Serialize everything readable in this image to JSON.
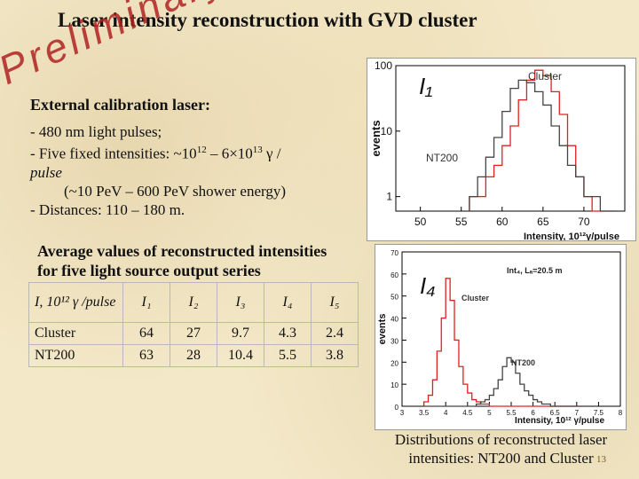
{
  "title": "Laser intensity reconstruction with GVD cluster",
  "watermark": "Preliminary",
  "calibration": {
    "heading": "External calibration laser:",
    "line1": "- 480 nm light pulses;",
    "line2_a": "- Five fixed intensities: ~10",
    "line2_sup1": "12",
    "line2_b": " – 6×10",
    "line2_sup2": "13",
    "line2_c": " γ  /",
    "line3": "pulse",
    "line4": "(~10 PeV – 600 PeV shower energy)",
    "line5": "- Distances: 110 – 180 m."
  },
  "average": {
    "heading_line1": "Average values of reconstructed intensities",
    "heading_line2": "for five light source output series"
  },
  "table": {
    "header": [
      "I, 10¹² γ /pulse",
      "I₁",
      "I₂",
      "I₃",
      "I₄",
      "I₅"
    ],
    "rows": [
      [
        "Cluster",
        "64",
        "27",
        "9.7",
        "4.3",
        "2.4"
      ],
      [
        "NT200",
        "63",
        "28",
        "10.4",
        "5.5",
        "3.8"
      ]
    ]
  },
  "caption": "Distributions of reconstructed laser intensities: NT200 and Cluster",
  "slide_number": "13",
  "chart_data": [
    {
      "type": "bar",
      "panel_label": "I₁",
      "ylabel": "events",
      "xlabel": "Intensity, 10¹²γ/pulse",
      "y_scale": "log",
      "ylim": [
        0.6,
        100
      ],
      "xlim": [
        47,
        75
      ],
      "x_ticks": [
        "50",
        "55",
        "60",
        "65",
        "70"
      ],
      "y_ticks": [
        "1",
        "10",
        "100"
      ],
      "legend": [
        "Cluster",
        "NT200"
      ],
      "colors": {
        "Cluster": "#e02020",
        "NT200": "#444444"
      },
      "bin_edges": [
        56,
        57,
        58,
        59,
        60,
        61,
        62,
        63,
        64,
        65,
        66,
        67,
        68,
        69,
        70,
        71,
        72,
        73,
        74
      ],
      "series": [
        {
          "name": "Cluster",
          "values": [
            1,
            1,
            2,
            3,
            6,
            12,
            30,
            60,
            85,
            70,
            40,
            18,
            6,
            2,
            1,
            0,
            0,
            0
          ]
        },
        {
          "name": "NT200",
          "values": [
            1,
            2,
            4,
            8,
            20,
            45,
            60,
            55,
            40,
            25,
            12,
            6,
            3,
            2,
            1,
            1,
            0,
            0
          ]
        }
      ]
    },
    {
      "type": "bar",
      "panel_label": "I₄",
      "ylabel": "events",
      "xlabel": "Intensity, 10¹² γ/pulse",
      "annotation": "Int₄, Lₐ=20.5 m",
      "ylim": [
        0,
        70
      ],
      "xlim": [
        3,
        8
      ],
      "x_ticks": [
        "3",
        "3.5",
        "4",
        "4.5",
        "5",
        "5.5",
        "6",
        "6.5",
        "7",
        "7.5",
        "8"
      ],
      "y_ticks": [
        "0",
        "10",
        "20",
        "30",
        "40",
        "50",
        "60",
        "70"
      ],
      "legend": [
        "Cluster",
        "NT200"
      ],
      "colors": {
        "Cluster": "#e02020",
        "NT200": "#444444"
      },
      "bin_edges": [
        3.5,
        3.6,
        3.7,
        3.8,
        3.9,
        4.0,
        4.1,
        4.2,
        4.3,
        4.4,
        4.5,
        4.6,
        4.7,
        4.8,
        4.9,
        5.0,
        5.1,
        5.2,
        5.3,
        5.4,
        5.5,
        5.6,
        5.7,
        5.8,
        5.9,
        6.0,
        6.1,
        6.2,
        6.3,
        6.4,
        6.5,
        6.6,
        6.7,
        6.8,
        6.9,
        7.0
      ],
      "series": [
        {
          "name": "Cluster",
          "values": [
            2,
            5,
            12,
            25,
            40,
            58,
            48,
            30,
            18,
            10,
            6,
            3,
            2,
            1,
            1,
            0,
            0,
            0,
            0,
            0,
            0,
            0,
            0,
            0,
            0,
            0,
            0,
            0,
            0,
            0,
            0,
            0,
            0,
            0,
            0
          ]
        },
        {
          "name": "NT200",
          "values": [
            0,
            0,
            0,
            0,
            0,
            0,
            0,
            0,
            0,
            0,
            0,
            0,
            1,
            2,
            3,
            5,
            8,
            12,
            18,
            22,
            20,
            15,
            10,
            7,
            5,
            3,
            2,
            1,
            1,
            0,
            0,
            0,
            0,
            0,
            0
          ]
        }
      ]
    }
  ]
}
